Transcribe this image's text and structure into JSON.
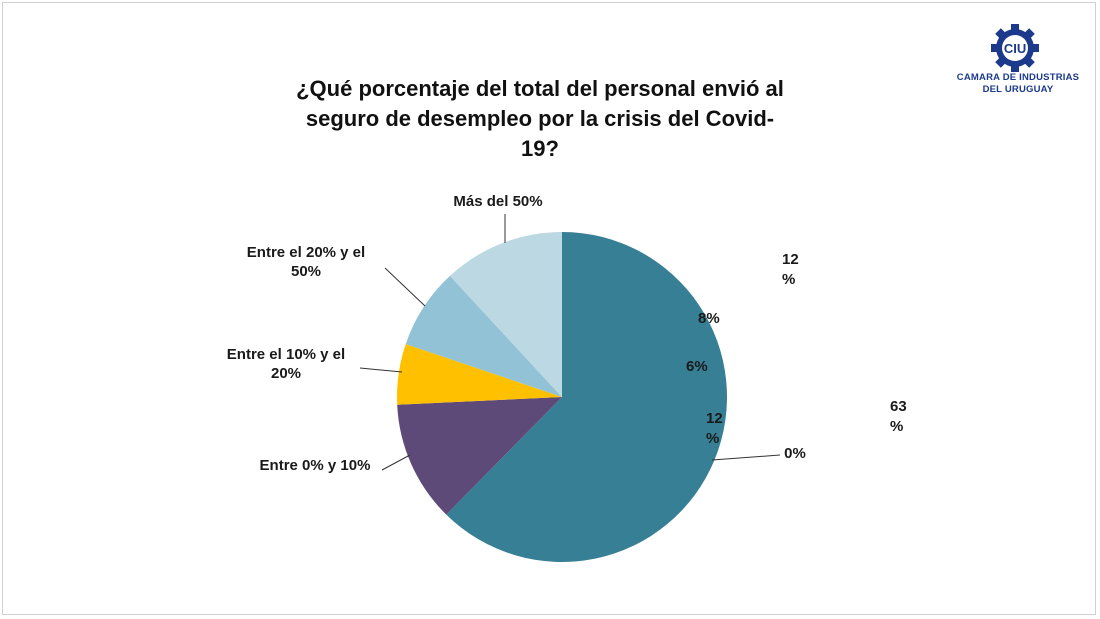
{
  "chart_data": {
    "type": "pie",
    "title": "¿Qué porcentaje del total del personal envió al seguro de desempleo por la crisis del Covid-19?",
    "categories": [
      "0%",
      "Entre 0% y 10%",
      "Entre el 10% y el 20%",
      "Entre el 20% y el 50%",
      "Más del 50%"
    ],
    "values": [
      63,
      12,
      6,
      8,
      12
    ],
    "category_labels": [
      "0%",
      "Entre 0% y 10%",
      "Entre el 10% y el 20%",
      "Entre el 20% y el 50%",
      "Más del 50%"
    ],
    "value_labels": [
      "63 %",
      "12 %",
      "6%",
      "8%",
      "12 %"
    ],
    "colors": [
      "#377f95",
      "#5e4a78",
      "#ffc000",
      "#92c2d6",
      "#bcd8e3"
    ]
  },
  "logo": {
    "line1": "CAMARA DE INDUSTRIAS",
    "line2": "DEL URUGUAY",
    "mark": "CIU"
  }
}
